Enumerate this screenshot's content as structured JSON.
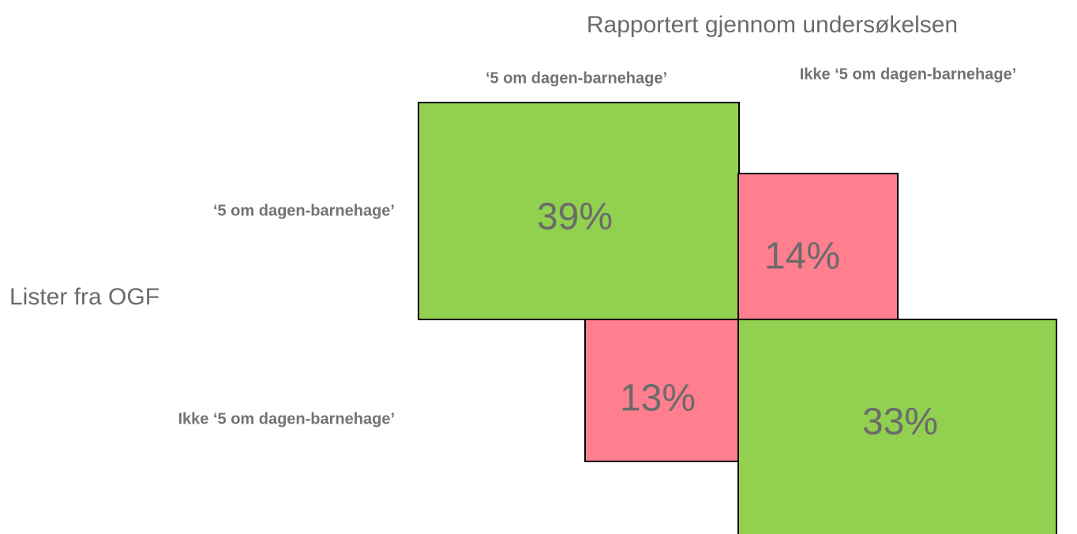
{
  "column_axis": {
    "title": "Rapportert gjennom undersøkelsen",
    "labels": [
      "‘5 om dagen-barnehage’",
      "Ikke ‘5 om dagen-barnehage’"
    ]
  },
  "row_axis": {
    "title": "Lister fra OGF",
    "labels": [
      "‘5 om dagen-barnehage’",
      "Ikke ‘5 om dagen-barnehage’"
    ]
  },
  "cells": [
    [
      "39%",
      "14%"
    ],
    [
      "13%",
      "33%"
    ]
  ]
}
